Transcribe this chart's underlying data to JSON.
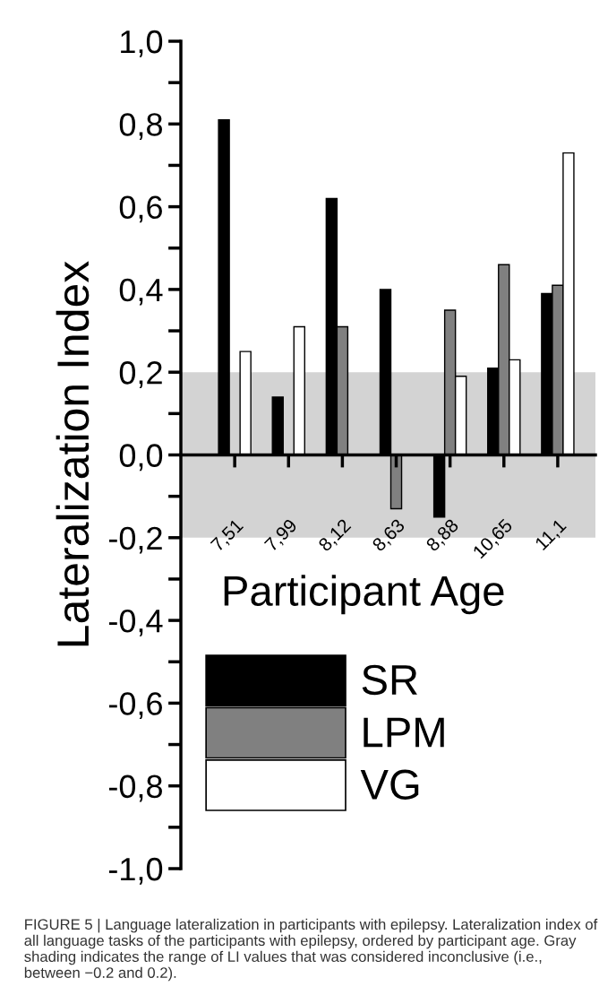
{
  "chart_data": {
    "type": "bar",
    "ylabel": "Lateralization Index",
    "xlabel": "Participant Age",
    "categories": [
      "7,51",
      "7,99",
      "8,12",
      "8,63",
      "8,88",
      "10,65",
      "11,1"
    ],
    "series": [
      {
        "name": "SR",
        "color": "#000000",
        "values": [
          0.81,
          0.14,
          0.62,
          0.4,
          -0.15,
          0.21,
          0.39
        ]
      },
      {
        "name": "LPM",
        "color": "#808080",
        "values": [
          null,
          null,
          0.31,
          -0.13,
          0.35,
          0.46,
          0.41
        ]
      },
      {
        "name": "VG",
        "color": "#ffffff",
        "values": [
          0.25,
          0.31,
          null,
          null,
          0.19,
          0.23,
          0.73
        ]
      }
    ],
    "ylim": [
      -1.0,
      1.0
    ],
    "yticks": [
      {
        "value": -1.0,
        "label": "-1,0"
      },
      {
        "value": -0.9,
        "label": null
      },
      {
        "value": -0.8,
        "label": "-0,8"
      },
      {
        "value": -0.7,
        "label": null
      },
      {
        "value": -0.6,
        "label": "-0,6"
      },
      {
        "value": -0.5,
        "label": null
      },
      {
        "value": -0.4,
        "label": "-0,4"
      },
      {
        "value": -0.3,
        "label": null
      },
      {
        "value": -0.2,
        "label": "-0,2"
      },
      {
        "value": -0.1,
        "label": null
      },
      {
        "value": 0.0,
        "label": "0,0"
      },
      {
        "value": 0.1,
        "label": null
      },
      {
        "value": 0.2,
        "label": "0,2"
      },
      {
        "value": 0.3,
        "label": null
      },
      {
        "value": 0.4,
        "label": "0,4"
      },
      {
        "value": 0.5,
        "label": null
      },
      {
        "value": 0.6,
        "label": "0,6"
      },
      {
        "value": 0.7,
        "label": null
      },
      {
        "value": 0.8,
        "label": "0,8"
      },
      {
        "value": 0.9,
        "label": null
      },
      {
        "value": 1.0,
        "label": "1,0"
      }
    ],
    "bands": [
      {
        "axis": "y",
        "from": -0.2,
        "to": 0.2,
        "color": "#d3d3d3"
      }
    ],
    "legend": "bottom left",
    "annotations": [
      "FIGURE 5 | Language lateralization in participants with epilepsy. Lateralization index of all language tasks of the participants with epilepsy, ordered by participant age. Gray shading indicates the range of LI values that was considered inconclusive (i.e., between −0.2 and 0.2)."
    ]
  }
}
